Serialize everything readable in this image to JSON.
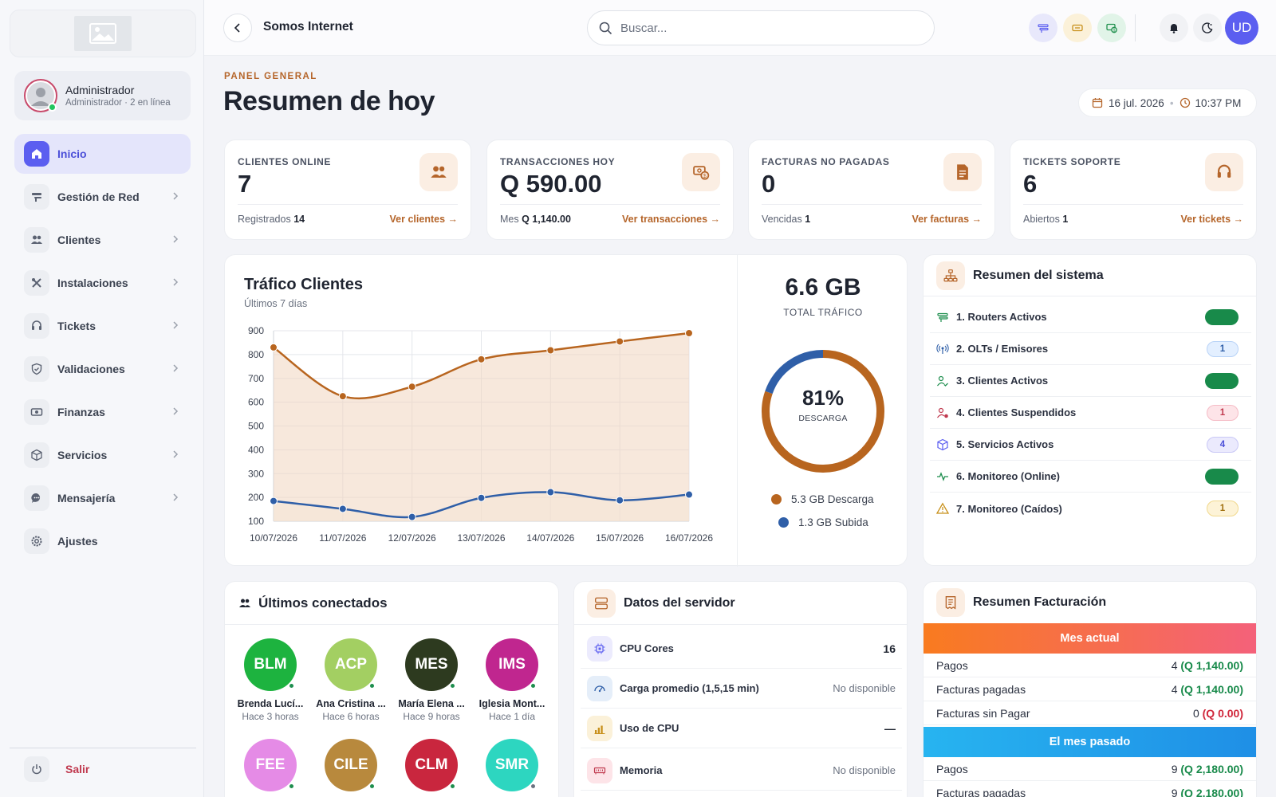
{
  "sidebar": {
    "user": {
      "name": "Administrador",
      "subtitle": "Administrador · 2 en línea"
    },
    "items": [
      {
        "label": "Inicio",
        "icon": "home-icon",
        "active": true
      },
      {
        "label": "Gestión de Red",
        "icon": "router-icon"
      },
      {
        "label": "Clientes",
        "icon": "users-icon"
      },
      {
        "label": "Instalaciones",
        "icon": "tools-icon"
      },
      {
        "label": "Tickets",
        "icon": "headset-icon"
      },
      {
        "label": "Validaciones",
        "icon": "shield-check-icon"
      },
      {
        "label": "Finanzas",
        "icon": "money-icon"
      },
      {
        "label": "Servicios",
        "icon": "box-icon"
      },
      {
        "label": "Mensajería",
        "icon": "chat-icon"
      },
      {
        "label": "Ajustes",
        "icon": "gear-icon"
      }
    ],
    "logout_label": "Salir"
  },
  "topbar": {
    "company": "Somos Internet",
    "search_placeholder": "Buscar...",
    "avatar_initials": "UD"
  },
  "header": {
    "eyebrow": "PANEL GENERAL",
    "title": "Resumen de hoy",
    "date": "16 jul. 2026",
    "time": "10:37 PM"
  },
  "stats": [
    {
      "label": "CLIENTES ONLINE",
      "value": "7",
      "foot_label": "Registrados",
      "foot_value": "14",
      "link": "Ver clientes →",
      "icon": "users-icon"
    },
    {
      "label": "TRANSACCIONES HOY",
      "value": "Q 590.00",
      "foot_label": "Mes",
      "foot_value": "Q 1,140.00",
      "link": "Ver transacciones →",
      "icon": "cash-icon"
    },
    {
      "label": "FACTURAS NO PAGADAS",
      "value": "0",
      "foot_label": "Vencidas",
      "foot_value": "1",
      "link": "Ver facturas →",
      "icon": "invoice-icon"
    },
    {
      "label": "TICKETS SOPORTE",
      "value": "6",
      "foot_label": "Abiertos",
      "foot_value": "1",
      "link": "Ver tickets →",
      "icon": "headset-icon"
    }
  ],
  "traffic": {
    "title": "Tráfico Clientes",
    "subtitle": "Últimos 7 días",
    "total_value": "6.6 GB",
    "total_label": "TOTAL TRÁFICO",
    "donut_pct": "81%",
    "donut_label": "DESCARGA",
    "legend_down": "5.3 GB Descarga",
    "legend_up": "1.3 GB Subida"
  },
  "chart_data": [
    {
      "type": "line",
      "categories": [
        "10/07/2026",
        "11/07/2026",
        "12/07/2026",
        "13/07/2026",
        "14/07/2026",
        "15/07/2026",
        "16/07/2026"
      ],
      "series": [
        {
          "color": "#b8651f",
          "values": [
            830,
            625,
            665,
            780,
            818,
            855,
            890
          ]
        },
        {
          "color": "#2f5fa8",
          "values": [
            185,
            152,
            118,
            198,
            222,
            188,
            212
          ]
        }
      ],
      "yticks": [
        900,
        800,
        700,
        600,
        500,
        400,
        300,
        200,
        100
      ],
      "ylim": [
        100,
        900
      ],
      "grid": true
    },
    {
      "type": "pie",
      "categories": [
        "5.3 GB Descarga",
        "1.3 GB Subida"
      ],
      "values": [
        5.3,
        1.3
      ],
      "colors": [
        "#b8651f",
        "#2f5fa8"
      ]
    }
  ],
  "system": {
    "title": "Resumen del sistema",
    "rows": [
      {
        "label": "1. Routers Activos",
        "icon": "router-icon",
        "badge": "",
        "kind": "green"
      },
      {
        "label": "2. OLTs / Emisores",
        "icon": "antenna-icon",
        "badge": "1",
        "kind": "blue"
      },
      {
        "label": "3. Clientes Activos",
        "icon": "user-check-icon",
        "badge": "",
        "kind": "green"
      },
      {
        "label": "4. Clientes Suspendidos",
        "icon": "user-x-icon",
        "badge": "1",
        "kind": "red"
      },
      {
        "label": "5. Servicios Activos",
        "icon": "box-icon",
        "badge": "4",
        "kind": "purple"
      },
      {
        "label": "6. Monitoreo (Online)",
        "icon": "pulse-icon",
        "badge": "",
        "kind": "green"
      },
      {
        "label": "7. Monitoreo (Caídos)",
        "icon": "warning-icon",
        "badge": "1",
        "kind": "yellow"
      }
    ]
  },
  "connected": {
    "title": "Últimos conectados",
    "people": [
      {
        "initials": "BLM",
        "name": "Brenda Lucí...",
        "time": "Hace 3 horas",
        "color": "#1db33f",
        "online": true
      },
      {
        "initials": "ACP",
        "name": "Ana Cristina ...",
        "time": "Hace 6 horas",
        "color": "#a3cf62",
        "online": true
      },
      {
        "initials": "MES",
        "name": "María Elena ...",
        "time": "Hace 9 horas",
        "color": "#2d3a1f",
        "online": true
      },
      {
        "initials": "IMS",
        "name": "Iglesia Mont...",
        "time": "Hace 1 día",
        "color": "#c0268f",
        "online": true
      },
      {
        "initials": "FEE",
        "name": "",
        "time": "",
        "color": "#e58be6",
        "online": true
      },
      {
        "initials": "CILE",
        "name": "",
        "time": "",
        "color": "#b8893d",
        "online": true
      },
      {
        "initials": "CLM",
        "name": "",
        "time": "",
        "color": "#c9263e",
        "online": true
      },
      {
        "initials": "SMR",
        "name": "",
        "time": "",
        "color": "#2dd6c0",
        "online": false
      }
    ]
  },
  "server": {
    "title": "Datos del servidor",
    "rows": [
      {
        "label": "CPU Cores",
        "value": "16",
        "icon": "cpu-icon",
        "strong": true
      },
      {
        "label": "Carga promedio (1,5,15 min)",
        "value": "No disponible",
        "icon": "gauge-icon",
        "strong": false
      },
      {
        "label": "Uso de CPU",
        "value": "—",
        "icon": "bar-chart-icon",
        "strong": true
      },
      {
        "label": "Memoria",
        "value": "No disponible",
        "icon": "memory-icon",
        "strong": false
      }
    ]
  },
  "billing": {
    "title": "Resumen Facturación",
    "current_label": "Mes actual",
    "past_label": "El mes pasado",
    "current": [
      {
        "label": "Pagos",
        "count": "4",
        "amount": "(Q 1,140.00)",
        "red": false
      },
      {
        "label": "Facturas pagadas",
        "count": "4",
        "amount": "(Q 1,140.00)",
        "red": false
      },
      {
        "label": "Facturas sin Pagar",
        "count": "0",
        "amount": "(Q 0.00)",
        "red": true
      }
    ],
    "past": [
      {
        "label": "Pagos",
        "count": "9",
        "amount": "(Q 2,180.00)",
        "red": false
      },
      {
        "label": "Facturas pagadas",
        "count": "9",
        "amount": "(Q 2,180.00)",
        "red": false
      }
    ]
  }
}
